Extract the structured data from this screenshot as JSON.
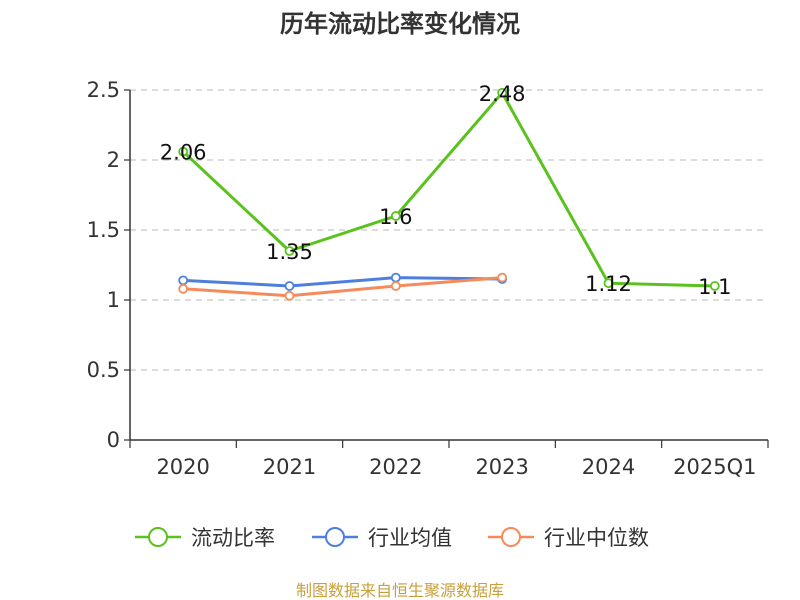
{
  "chart_data": {
    "type": "line",
    "title": "历年流动比率变化情况",
    "categories": [
      "2020",
      "2021",
      "2022",
      "2023",
      "2024",
      "2025Q1"
    ],
    "yticks": [
      "0",
      "0.5",
      "1",
      "1.5",
      "2",
      "2.5"
    ],
    "ylim": [
      0,
      2.5
    ],
    "grid": true,
    "legend_position": "bottom",
    "series": [
      {
        "name": "流动比率",
        "color": "#5ac21e",
        "values": [
          2.06,
          1.35,
          1.6,
          2.48,
          1.12,
          1.1
        ],
        "labels": [
          "2.06",
          "1.35",
          "1.6",
          "2.48",
          "1.12",
          "1.1"
        ]
      },
      {
        "name": "行业均值",
        "color": "#4e7fdc",
        "values": [
          1.14,
          1.1,
          1.16,
          1.15,
          null,
          null
        ]
      },
      {
        "name": "行业中位数",
        "color": "#f58a5a",
        "values": [
          1.08,
          1.03,
          1.1,
          1.16,
          null,
          null
        ]
      }
    ],
    "source": "制图数据来自恒生聚源数据库"
  }
}
